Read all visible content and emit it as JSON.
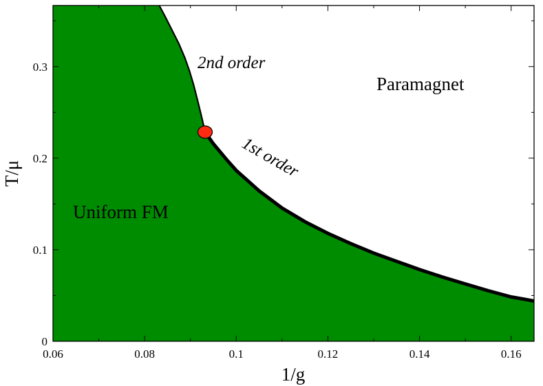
{
  "chart_data": {
    "type": "area",
    "xlabel": "1/g",
    "ylabel": "T/μ",
    "xlim": [
      0.06,
      0.165
    ],
    "ylim": [
      0,
      0.3667
    ],
    "x_ticks": [
      0.06,
      0.08,
      0.1,
      0.12,
      0.14,
      0.16
    ],
    "x_tick_labels": [
      "0.06",
      "0.08",
      "0.1",
      "0.12",
      "0.14",
      "0.16"
    ],
    "y_ticks": [
      0,
      0.1,
      0.2,
      0.3
    ],
    "y_tick_labels": [
      "0",
      "0.1",
      "0.2",
      "0.3"
    ],
    "grid": false,
    "colors": {
      "fm_region": "#008C00",
      "critical_point": "#FF2A12",
      "boundary": "#000000"
    },
    "series": [
      {
        "name": "2nd order",
        "x": [
          0.0832,
          0.0845,
          0.086,
          0.0875,
          0.0888,
          0.0898,
          0.0907,
          0.0915,
          0.0922,
          0.0928,
          0.0932
        ],
        "y": [
          0.3667,
          0.3545,
          0.3396,
          0.3246,
          0.3094,
          0.2951,
          0.2799,
          0.2642,
          0.25,
          0.2373,
          0.2284
        ]
      },
      {
        "name": "1st order",
        "x": [
          0.0932,
          0.095,
          0.098,
          0.1,
          0.105,
          0.11,
          0.115,
          0.12,
          0.125,
          0.13,
          0.135,
          0.14,
          0.145,
          0.15,
          0.155,
          0.16,
          0.165
        ],
        "y": [
          0.2284,
          0.2157,
          0.1978,
          0.1866,
          0.1642,
          0.1455,
          0.1306,
          0.1179,
          0.1067,
          0.0963,
          0.0873,
          0.0784,
          0.0702,
          0.0627,
          0.0552,
          0.0485,
          0.044
        ]
      }
    ],
    "critical_point": {
      "x": 0.0932,
      "y": 0.2284
    },
    "regions": {
      "ordered": "Uniform FM",
      "disordered": "Paramagnet"
    },
    "annotations": {
      "second_order": "2nd order",
      "first_order": "1st order"
    }
  }
}
